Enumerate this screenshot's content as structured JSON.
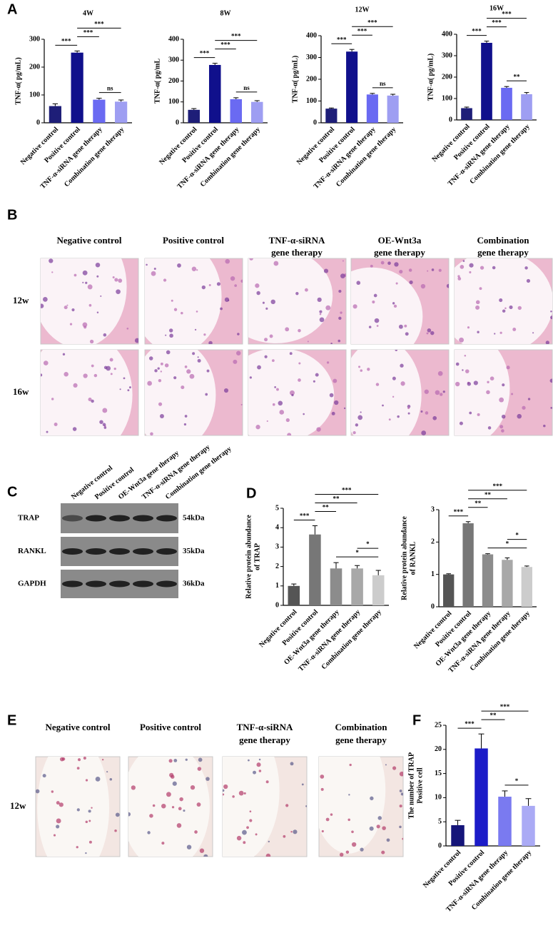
{
  "panel_labels": [
    "A",
    "B",
    "C",
    "D",
    "E",
    "F"
  ],
  "chart_data": [
    {
      "type": "bar",
      "title": "4W",
      "y_label": "TNF-α( pg/mL)",
      "categories": [
        "Negative control",
        "Positive control",
        "TNF-α-siRNA gene therapy",
        "Combination gene therapy"
      ],
      "values": [
        60,
        252,
        83,
        76
      ],
      "errors": [
        8,
        6,
        5,
        6
      ],
      "colors": [
        "#1e1e78",
        "#10108c",
        "#6a6af2",
        "#9e9ef2"
      ],
      "ylim": [
        0,
        300
      ],
      "yticks": [
        0,
        100,
        200,
        300
      ],
      "significance": [
        {
          "pair": [
            0,
            1
          ],
          "label": "***"
        },
        {
          "pair": [
            1,
            2
          ],
          "label": "***"
        },
        {
          "pair": [
            1,
            3
          ],
          "label": "***"
        },
        {
          "pair": [
            2,
            3
          ],
          "label": "ns"
        }
      ]
    },
    {
      "type": "bar",
      "title": "8W",
      "y_label": "TNF-α( pg/mL",
      "categories": [
        "Negative control",
        "Positive control",
        "TNF-α-siRNA gene therapy",
        "Combination gene therapy"
      ],
      "values": [
        62,
        277,
        113,
        100
      ],
      "errors": [
        6,
        8,
        7,
        6
      ],
      "colors": [
        "#1e1e78",
        "#10108c",
        "#6a6af2",
        "#9e9ef2"
      ],
      "ylim": [
        0,
        400
      ],
      "yticks": [
        0,
        100,
        200,
        300,
        400
      ],
      "significance": [
        {
          "pair": [
            0,
            1
          ],
          "label": "***"
        },
        {
          "pair": [
            1,
            2
          ],
          "label": "***"
        },
        {
          "pair": [
            1,
            3
          ],
          "label": "***"
        },
        {
          "pair": [
            2,
            3
          ],
          "label": "ns"
        }
      ]
    },
    {
      "type": "bar",
      "title": "12W",
      "y_label": "TNF-α( pg/mL)",
      "categories": [
        "Negative control",
        "Positive control",
        "TNF-α-siRNA gene therapy",
        "Combination gene therapy"
      ],
      "values": [
        65,
        327,
        130,
        125
      ],
      "errors": [
        3,
        10,
        5,
        6
      ],
      "colors": [
        "#1e1e78",
        "#10108c",
        "#6a6af2",
        "#9e9ef2"
      ],
      "ylim": [
        0,
        400
      ],
      "yticks": [
        0,
        100,
        200,
        300,
        400
      ],
      "significance": [
        {
          "pair": [
            0,
            1
          ],
          "label": "***"
        },
        {
          "pair": [
            1,
            2
          ],
          "label": "***"
        },
        {
          "pair": [
            1,
            3
          ],
          "label": "***"
        },
        {
          "pair": [
            2,
            3
          ],
          "label": "ns"
        }
      ]
    },
    {
      "type": "bar",
      "title": "16W",
      "y_label": "TNF-α( pg/mL)",
      "categories": [
        "Negative control",
        "Positive control",
        "TNF-α-siRNA gene therapy",
        "Combination gene therapy"
      ],
      "values": [
        55,
        360,
        150,
        120
      ],
      "errors": [
        5,
        8,
        6,
        8
      ],
      "colors": [
        "#1e1e78",
        "#10108c",
        "#6a6af2",
        "#9e9ef2"
      ],
      "ylim": [
        0,
        400
      ],
      "yticks": [
        0,
        100,
        200,
        300,
        400
      ],
      "significance": [
        {
          "pair": [
            0,
            1
          ],
          "label": "***"
        },
        {
          "pair": [
            1,
            2
          ],
          "label": "***"
        },
        {
          "pair": [
            1,
            3
          ],
          "label": "***"
        },
        {
          "pair": [
            2,
            3
          ],
          "label": "**"
        }
      ]
    },
    {
      "type": "bar",
      "y_label": [
        "Relative protein abundance",
        "of TRAP"
      ],
      "categories": [
        "Negative control",
        "Positive control",
        "OE-Wnt3a gene therapy",
        "TNF-α-siRNA gene therapy",
        "Combination gene therapy"
      ],
      "values": [
        1.0,
        3.65,
        1.9,
        1.9,
        1.55
      ],
      "errors": [
        0.1,
        0.45,
        0.3,
        0.15,
        0.25
      ],
      "colors": [
        "#555555",
        "#777777",
        "#8c8c8c",
        "#a8a8a8",
        "#cccccc"
      ],
      "ylim": [
        0,
        5
      ],
      "yticks": [
        0,
        1,
        2,
        3,
        4,
        5
      ],
      "significance": [
        {
          "pair": [
            0,
            1
          ],
          "label": "***"
        },
        {
          "pair": [
            1,
            2
          ],
          "label": "**"
        },
        {
          "pair": [
            1,
            3
          ],
          "label": "**"
        },
        {
          "pair": [
            1,
            4
          ],
          "label": "***"
        },
        {
          "pair": [
            2,
            4
          ],
          "label": "*"
        },
        {
          "pair": [
            3,
            4
          ],
          "label": "*"
        }
      ]
    },
    {
      "type": "bar",
      "y_label": [
        "Relative protein abundance",
        "of RANKL"
      ],
      "categories": [
        "Negative control",
        "Positive control",
        "OE-Wnt3a gene therapy",
        "TNF-α-siRNA gene therapy",
        "Combination gene therapy"
      ],
      "values": [
        1.0,
        2.58,
        1.62,
        1.45,
        1.23
      ],
      "errors": [
        0.02,
        0.05,
        0.02,
        0.06,
        0.03
      ],
      "colors": [
        "#555555",
        "#777777",
        "#8c8c8c",
        "#a8a8a8",
        "#cccccc"
      ],
      "ylim": [
        0,
        3
      ],
      "yticks": [
        0,
        1,
        2,
        3
      ],
      "significance": [
        {
          "pair": [
            0,
            1
          ],
          "label": "***"
        },
        {
          "pair": [
            1,
            2
          ],
          "label": "**"
        },
        {
          "pair": [
            1,
            3
          ],
          "label": "**"
        },
        {
          "pair": [
            1,
            4
          ],
          "label": "***"
        },
        {
          "pair": [
            2,
            4
          ],
          "label": "*"
        },
        {
          "pair": [
            3,
            4
          ],
          "label": "*"
        }
      ]
    },
    {
      "type": "bar",
      "y_label": [
        "The number of TRAP",
        "Positive cell"
      ],
      "categories": [
        "Negative control",
        "Positive control",
        "TNF-α-siRNA gene therapy",
        "Combination gene therapy"
      ],
      "values": [
        4.3,
        20.2,
        10.2,
        8.3
      ],
      "errors": [
        1.0,
        3.0,
        1.2,
        1.5
      ],
      "colors": [
        "#15157a",
        "#1c1cc8",
        "#7a7af0",
        "#aaaaf5"
      ],
      "ylim": [
        0,
        25
      ],
      "yticks": [
        0,
        5,
        10,
        15,
        20,
        25
      ],
      "significance": [
        {
          "pair": [
            0,
            1
          ],
          "label": "***"
        },
        {
          "pair": [
            1,
            2
          ],
          "label": "**"
        },
        {
          "pair": [
            1,
            3
          ],
          "label": "***"
        },
        {
          "pair": [
            2,
            3
          ],
          "label": "*"
        }
      ]
    }
  ],
  "histology_b": {
    "columns": [
      [
        "Negative control"
      ],
      [
        "Positive control"
      ],
      [
        "TNF-α-siRNA",
        "gene therapy"
      ],
      [
        "OE-Wnt3a",
        "gene therapy"
      ],
      [
        "Combination",
        "gene therapy"
      ]
    ],
    "rows": [
      "12w",
      "16w"
    ]
  },
  "western_blot": {
    "lanes": [
      "Negative control",
      "Positive control",
      "OE-Wnt3a gene therapy",
      "TNF-α-siRNA gene therapy",
      "Combination gene therapy"
    ],
    "proteins": [
      "TRAP",
      "RANKL",
      "GAPDH"
    ],
    "sizes": [
      "54kDa",
      "35kDa",
      "36kDa"
    ]
  },
  "histology_e": {
    "columns": [
      [
        "Negative control"
      ],
      [
        "Positive control"
      ],
      [
        "TNF-α-siRNA",
        "gene therapy"
      ],
      [
        "Combination",
        "gene therapy"
      ]
    ],
    "rows": [
      "12w"
    ]
  }
}
